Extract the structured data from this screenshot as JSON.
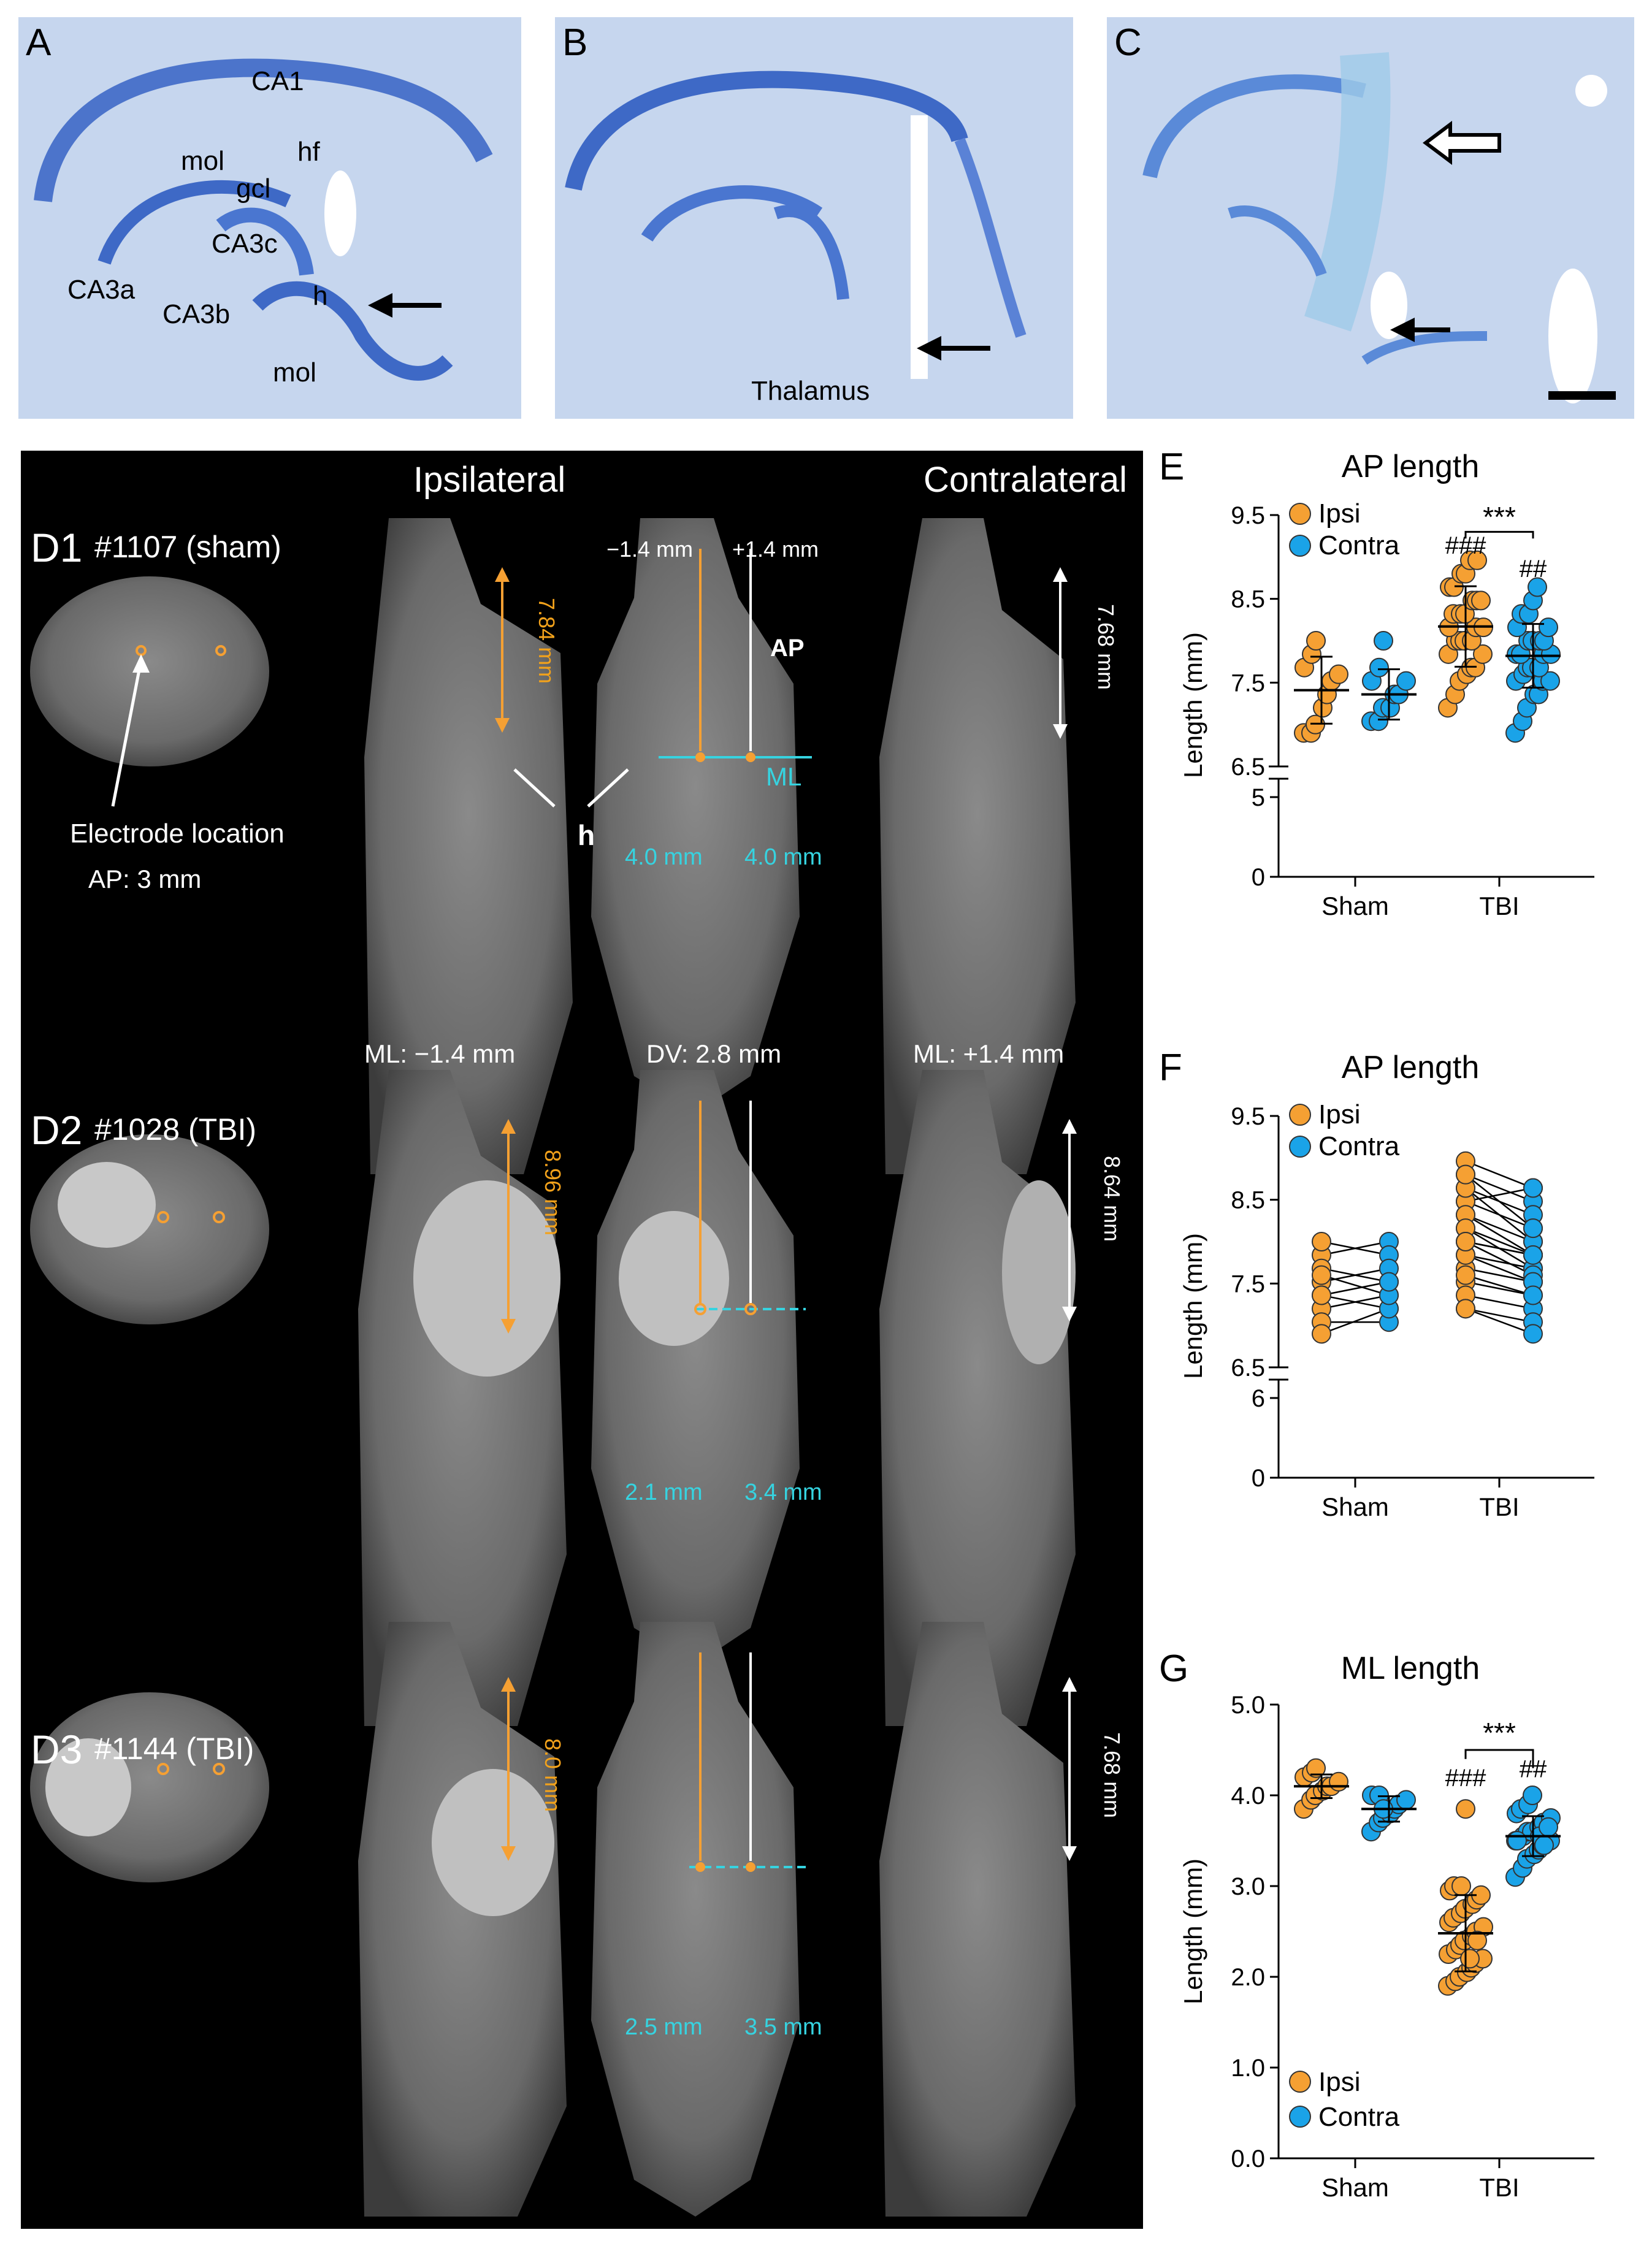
{
  "histology": {
    "panel_A": {
      "letter": "A",
      "labels": [
        "CA1",
        "mol",
        "gcl",
        "hf",
        "CA3c",
        "CA3a",
        "CA3b",
        "h",
        "mol"
      ]
    },
    "panel_B": {
      "letter": "B",
      "labels": [
        "Thalamus"
      ]
    },
    "panel_C": {
      "letter": "C"
    }
  },
  "mri": {
    "col_ipsi": "Ipsilateral",
    "col_contra": "Contralateral",
    "rows": [
      {
        "tag": "D1",
        "id": "#1107 (sham)",
        "electrode_label": "Electrode location",
        "ap_label": "AP: 3 mm",
        "ipsi_len": "7.84 mm",
        "contra_len": "7.68 mm",
        "ml_left": "4.0 mm",
        "ml_right": "4.0 mm",
        "minus_pos": "−1.4 mm",
        "plus_pos": "+1.4 mm",
        "ap_tag": "AP",
        "ml_tag": "ML",
        "h_tag": "h",
        "foot_left": "ML: −1.4 mm",
        "foot_mid": "DV: 2.8 mm",
        "foot_right": "ML: +1.4 mm"
      },
      {
        "tag": "D2",
        "id": "#1028 (TBI)",
        "ipsi_len": "8.96 mm",
        "contra_len": "8.64 mm",
        "ml_left": "2.1 mm",
        "ml_right": "3.4 mm"
      },
      {
        "tag": "D3",
        "id": "#1144 (TBI)",
        "ipsi_len": "8.0 mm",
        "contra_len": "7.68 mm",
        "ml_left": "2.5 mm",
        "ml_right": "3.5 mm"
      }
    ]
  },
  "colors": {
    "ipsi": "#f5a033",
    "contra": "#1aa3e8",
    "cyan": "#36d3e0",
    "black": "#000000"
  },
  "chart_data": [
    {
      "panel": "E",
      "type": "scatter",
      "title": "AP length",
      "ylabel": "Length (mm)",
      "categories": [
        "Sham",
        "TBI"
      ],
      "ylim_upper": [
        6.5,
        9.5
      ],
      "ylim_lower": [
        0,
        5
      ],
      "ticks_upper": [
        "6.5",
        "7.5",
        "8.5",
        "9.5"
      ],
      "ticks_lower": [
        "0",
        "5"
      ],
      "legend": [
        "Ipsi",
        "Contra"
      ],
      "series": [
        {
          "name": "Ipsi",
          "group": "Sham",
          "mean": 7.41,
          "sd": 0.4,
          "values": [
            6.9,
            6.9,
            7.0,
            7.2,
            7.36,
            7.52,
            7.6,
            7.68,
            7.84,
            8.0
          ]
        },
        {
          "name": "Contra",
          "group": "Sham",
          "mean": 7.36,
          "sd": 0.3,
          "values": [
            7.04,
            7.04,
            7.2,
            7.2,
            7.36,
            7.36,
            7.52,
            7.52,
            7.68,
            8.0
          ]
        },
        {
          "name": "Ipsi",
          "group": "TBI",
          "mean": 8.17,
          "sd": 0.48,
          "values": [
            7.2,
            7.36,
            7.52,
            7.6,
            7.68,
            7.68,
            7.84,
            7.84,
            8.0,
            8.0,
            8.0,
            8.0,
            8.16,
            8.16,
            8.16,
            8.32,
            8.32,
            8.32,
            8.48,
            8.48,
            8.48,
            8.64,
            8.64,
            8.8,
            8.8,
            8.96,
            8.96
          ]
        },
        {
          "name": "Contra",
          "group": "TBI",
          "mean": 7.82,
          "sd": 0.38,
          "values": [
            6.9,
            7.04,
            7.2,
            7.36,
            7.36,
            7.52,
            7.52,
            7.52,
            7.6,
            7.68,
            7.68,
            7.68,
            7.84,
            7.84,
            7.84,
            7.84,
            8.0,
            8.0,
            8.0,
            8.0,
            8.16,
            8.16,
            8.32,
            8.32,
            8.48,
            8.64
          ]
        }
      ],
      "annotations": {
        "sig": "***",
        "hash_ipsi": "###",
        "hash_contra": "##"
      }
    },
    {
      "panel": "F",
      "type": "line",
      "title": "AP length",
      "ylabel": "Length (mm)",
      "categories": [
        "Sham",
        "TBI"
      ],
      "ylim_upper": [
        6.5,
        9.5
      ],
      "ylim_lower": [
        0,
        6
      ],
      "ticks_upper": [
        "6.5",
        "7.5",
        "8.5",
        "9.5"
      ],
      "ticks_lower": [
        "0",
        "6"
      ],
      "legend": [
        "Ipsi",
        "Contra"
      ],
      "pairs_sham": [
        [
          7.84,
          8.0
        ],
        [
          8.0,
          7.84
        ],
        [
          7.68,
          7.52
        ],
        [
          7.52,
          7.68
        ],
        [
          7.36,
          7.2
        ],
        [
          7.2,
          7.36
        ],
        [
          7.04,
          7.04
        ],
        [
          6.9,
          7.2
        ],
        [
          7.6,
          7.36
        ],
        [
          7.36,
          7.52
        ]
      ],
      "pairs_tbi": [
        [
          8.96,
          8.64
        ],
        [
          8.8,
          8.48
        ],
        [
          8.64,
          8.32
        ],
        [
          8.48,
          8.16
        ],
        [
          8.32,
          8.0
        ],
        [
          8.16,
          7.84
        ],
        [
          8.0,
          7.84
        ],
        [
          7.84,
          7.68
        ],
        [
          7.68,
          7.52
        ],
        [
          7.52,
          7.36
        ],
        [
          7.36,
          7.2
        ],
        [
          7.2,
          7.04
        ],
        [
          8.48,
          8.64
        ],
        [
          8.32,
          7.84
        ],
        [
          8.16,
          7.68
        ],
        [
          8.0,
          7.6
        ],
        [
          7.84,
          7.52
        ],
        [
          7.6,
          7.36
        ],
        [
          8.64,
          8.0
        ],
        [
          8.8,
          8.16
        ],
        [
          7.2,
          6.9
        ],
        [
          8.0,
          7.84
        ]
      ]
    },
    {
      "panel": "G",
      "type": "scatter",
      "title": "ML length",
      "ylabel": "Length (mm)",
      "categories": [
        "Sham",
        "TBI"
      ],
      "ylim": [
        0,
        5
      ],
      "ticks": [
        "0.0",
        "1.0",
        "2.0",
        "3.0",
        "4.0",
        "5.0"
      ],
      "legend": [
        "Ipsi",
        "Contra"
      ],
      "series": [
        {
          "name": "Ipsi",
          "group": "Sham",
          "mean": 4.1,
          "sd": 0.13,
          "values": [
            3.85,
            3.95,
            4.0,
            4.05,
            4.1,
            4.1,
            4.15,
            4.2,
            4.25,
            4.3
          ]
        },
        {
          "name": "Contra",
          "group": "Sham",
          "mean": 3.85,
          "sd": 0.14,
          "values": [
            3.6,
            3.7,
            3.75,
            3.8,
            3.85,
            3.9,
            3.95,
            4.0,
            4.0,
            3.85
          ]
        },
        {
          "name": "Ipsi",
          "group": "TBI",
          "mean": 2.48,
          "sd": 0.42,
          "values": [
            1.9,
            1.95,
            2.0,
            2.05,
            2.1,
            2.15,
            2.2,
            2.25,
            2.3,
            2.35,
            2.4,
            2.45,
            2.5,
            2.55,
            2.6,
            2.65,
            2.7,
            2.75,
            2.8,
            2.85,
            2.9,
            2.95,
            3.0,
            3.0,
            3.85,
            2.2,
            2.4
          ]
        },
        {
          "name": "Contra",
          "group": "TBI",
          "mean": 3.55,
          "sd": 0.22,
          "values": [
            3.1,
            3.2,
            3.3,
            3.35,
            3.4,
            3.45,
            3.5,
            3.5,
            3.55,
            3.6,
            3.6,
            3.65,
            3.7,
            3.75,
            3.8,
            3.85,
            3.9,
            4.0,
            3.55,
            3.45,
            3.65,
            3.5
          ]
        }
      ],
      "annotations": {
        "sig": "***",
        "hash_ipsi": "###",
        "hash_contra": "##"
      }
    }
  ]
}
